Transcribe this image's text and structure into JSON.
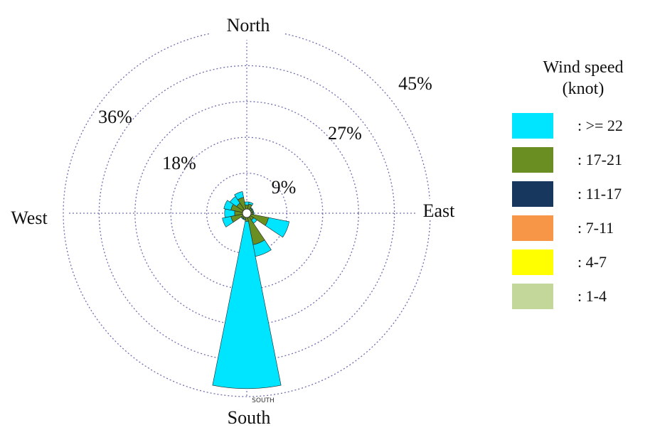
{
  "chart_data": {
    "type": "wind-rose",
    "radial_unit": "%",
    "rmax": 45,
    "ring_values": [
      9,
      18,
      27,
      36,
      45
    ],
    "ring_labels": [
      "9%",
      "18%",
      "27%",
      "36%",
      "45%"
    ],
    "directions": {
      "north": "North",
      "south": "South",
      "east": "East",
      "west": "West"
    },
    "inner_south_label": "SOUTH",
    "legend_title_line1": "Wind speed",
    "legend_title_line2": "(knot)",
    "legend": [
      {
        "label": ": >= 22",
        "color": "#00e5ff"
      },
      {
        "label": ": 17-21",
        "color": "#6b8e23"
      },
      {
        "label": ": 11-17",
        "color": "#17375e"
      },
      {
        "label": ": 7-11",
        "color": "#f79646"
      },
      {
        "label": ": 4-7",
        "color": "#ffff00"
      },
      {
        "label": ": 1-4",
        "color": "#c4d79b"
      }
    ],
    "sectors": [
      {
        "direction": "N",
        "angle": 0,
        "segments": [
          {
            "speed": "17-21",
            "value": 1.0
          },
          {
            "speed": ">= 22",
            "value": 0.8
          }
        ]
      },
      {
        "direction": "NNE",
        "angle": 22.5,
        "segments": [
          {
            "speed": "17-21",
            "value": 1.3
          },
          {
            "speed": ">= 22",
            "value": 0.5
          }
        ]
      },
      {
        "direction": "NE",
        "angle": 45,
        "segments": [
          {
            "speed": "17-21",
            "value": 0.5
          },
          {
            "speed": ">= 22",
            "value": 0.2
          }
        ]
      },
      {
        "direction": "ENE",
        "angle": 67.5,
        "segments": [
          {
            "speed": "17-21",
            "value": 0.5
          },
          {
            "speed": ">= 22",
            "value": 0.2
          }
        ]
      },
      {
        "direction": "E",
        "angle": 90,
        "segments": [
          {
            "speed": "17-21",
            "value": 0.5
          },
          {
            "speed": ">= 22",
            "value": 0.2
          }
        ]
      },
      {
        "direction": "ESE",
        "angle": 112.5,
        "segments": [
          {
            "speed": "17-21",
            "value": 4.5
          },
          {
            "speed": ">= 22",
            "value": 5.3
          }
        ]
      },
      {
        "direction": "SE",
        "angle": 135,
        "segments": [
          {
            "speed": "17-21",
            "value": 1.0
          },
          {
            "speed": ">= 22",
            "value": 1.0
          }
        ]
      },
      {
        "direction": "SSE",
        "angle": 157.5,
        "segments": [
          {
            "speed": "17-21",
            "value": 7.0
          },
          {
            "speed": ">= 22",
            "value": 3.0
          }
        ]
      },
      {
        "direction": "S",
        "angle": 180,
        "segments": [
          {
            "speed": "17-21",
            "value": 1.0
          },
          {
            "speed": ">= 22",
            "value": 42.0
          }
        ]
      },
      {
        "direction": "SSW",
        "angle": 202.5,
        "segments": [
          {
            "speed": "17-21",
            "value": 0.5
          },
          {
            "speed": ">= 22",
            "value": 0.2
          }
        ]
      },
      {
        "direction": "SW",
        "angle": 225,
        "segments": [
          {
            "speed": "17-21",
            "value": 0.5
          },
          {
            "speed": ">= 22",
            "value": 0.2
          }
        ]
      },
      {
        "direction": "WSW",
        "angle": 247.5,
        "segments": [
          {
            "speed": "17-21",
            "value": 3.0
          },
          {
            "speed": ">= 22",
            "value": 2.2
          }
        ]
      },
      {
        "direction": "W",
        "angle": 270,
        "segments": [
          {
            "speed": "17-21",
            "value": 2.0
          },
          {
            "speed": ">= 22",
            "value": 2.5
          }
        ]
      },
      {
        "direction": "WNW",
        "angle": 292.5,
        "segments": [
          {
            "speed": "17-21",
            "value": 3.0
          },
          {
            "speed": ">= 22",
            "value": 1.8
          }
        ]
      },
      {
        "direction": "NW",
        "angle": 315,
        "segments": [
          {
            "speed": "17-21",
            "value": 2.0
          },
          {
            "speed": ">= 22",
            "value": 2.0
          }
        ]
      },
      {
        "direction": "NNW",
        "angle": 337.5,
        "segments": [
          {
            "speed": "17-21",
            "value": 3.0
          },
          {
            "speed": ">= 22",
            "value": 1.5
          }
        ]
      }
    ]
  }
}
